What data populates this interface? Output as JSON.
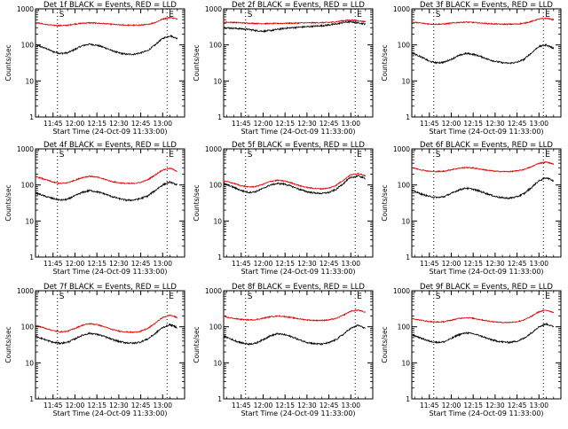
{
  "time_ticks": [
    "11:45",
    "12:00",
    "12:15",
    "12:30",
    "12:45",
    "13:00"
  ],
  "time_tick_minutes": [
    705,
    720,
    735,
    750,
    765,
    780
  ],
  "time_range": [
    693,
    795
  ],
  "event_markers": [
    {
      "time": 708,
      "label": "S"
    },
    {
      "time": 783,
      "label": "E"
    }
  ],
  "y_ticks": [
    "1",
    "10",
    "100",
    "1000"
  ],
  "y_tick_values": [
    1,
    10,
    100,
    1000
  ],
  "ylim": [
    1,
    1000
  ],
  "ylabel": "Counts/sec",
  "xlabel": "Start Time (24-Oct-09 11:33:00)",
  "series_colors": {
    "events": "#000000",
    "lld": "#dd0000"
  },
  "chart_data": [
    {
      "type": "line",
      "title": "Det 1f BLACK = Events, RED = LLD",
      "y_scale": "log",
      "grid": false,
      "series": [
        {
          "x": [
            693,
            700,
            705,
            710,
            715,
            720,
            725,
            730,
            735,
            740,
            745,
            750,
            755,
            760,
            765,
            770,
            775,
            780,
            785,
            790
          ],
          "values": [
            100,
            80,
            65,
            58,
            60,
            75,
            95,
            105,
            98,
            85,
            70,
            60,
            55,
            55,
            60,
            70,
            100,
            150,
            180,
            150
          ]
        },
        {
          "x": [
            693,
            700,
            705,
            710,
            715,
            720,
            725,
            730,
            735,
            740,
            745,
            750,
            755,
            760,
            765,
            770,
            775,
            780,
            785,
            790
          ],
          "values": [
            420,
            370,
            350,
            345,
            350,
            380,
            400,
            410,
            400,
            390,
            375,
            360,
            355,
            350,
            355,
            370,
            420,
            520,
            580,
            520
          ]
        }
      ]
    },
    {
      "type": "line",
      "title": "Det 2f BLACK = Events, RED = LLD",
      "y_scale": "log",
      "grid": false,
      "series": [
        {
          "x": [
            693,
            700,
            705,
            710,
            715,
            720,
            725,
            730,
            735,
            740,
            745,
            750,
            755,
            760,
            765,
            770,
            775,
            780,
            785,
            790
          ],
          "values": [
            300,
            290,
            280,
            270,
            250,
            240,
            250,
            270,
            290,
            300,
            310,
            320,
            330,
            340,
            360,
            380,
            420,
            440,
            410,
            380
          ]
        },
        {
          "x": [
            693,
            700,
            705,
            710,
            715,
            720,
            725,
            730,
            735,
            740,
            745,
            750,
            755,
            760,
            765,
            770,
            775,
            780,
            785,
            790
          ],
          "values": [
            430,
            420,
            410,
            400,
            395,
            390,
            390,
            395,
            400,
            400,
            405,
            410,
            410,
            415,
            420,
            440,
            470,
            490,
            470,
            440
          ]
        }
      ]
    },
    {
      "type": "line",
      "title": "Det 3f BLACK = Events, RED = LLD",
      "y_scale": "log",
      "grid": false,
      "series": [
        {
          "x": [
            693,
            700,
            705,
            710,
            715,
            720,
            725,
            730,
            735,
            740,
            745,
            750,
            755,
            760,
            765,
            770,
            775,
            780,
            785,
            790
          ],
          "values": [
            60,
            45,
            35,
            32,
            33,
            40,
            50,
            58,
            55,
            48,
            40,
            35,
            32,
            31,
            33,
            40,
            60,
            90,
            100,
            80
          ]
        },
        {
          "x": [
            693,
            700,
            705,
            710,
            715,
            720,
            725,
            730,
            735,
            740,
            745,
            750,
            755,
            760,
            765,
            770,
            775,
            780,
            785,
            790
          ],
          "values": [
            430,
            400,
            380,
            375,
            380,
            400,
            420,
            430,
            420,
            405,
            390,
            380,
            375,
            375,
            380,
            400,
            450,
            520,
            550,
            500
          ]
        }
      ]
    },
    {
      "type": "line",
      "title": "Det 4f BLACK = Events, RED = LLD",
      "y_scale": "log",
      "grid": false,
      "series": [
        {
          "x": [
            693,
            700,
            705,
            710,
            715,
            720,
            725,
            730,
            735,
            740,
            745,
            750,
            755,
            760,
            765,
            770,
            775,
            780,
            785,
            790
          ],
          "values": [
            60,
            48,
            42,
            38,
            40,
            50,
            62,
            70,
            65,
            57,
            48,
            42,
            38,
            38,
            42,
            50,
            70,
            100,
            120,
            100
          ]
        },
        {
          "x": [
            693,
            700,
            705,
            710,
            715,
            720,
            725,
            730,
            735,
            740,
            745,
            750,
            755,
            760,
            765,
            770,
            775,
            780,
            785,
            790
          ],
          "values": [
            170,
            140,
            120,
            110,
            115,
            135,
            160,
            175,
            165,
            145,
            125,
            115,
            110,
            110,
            118,
            140,
            190,
            260,
            290,
            240
          ]
        }
      ]
    },
    {
      "type": "line",
      "title": "Det 5f BLACK = Events, RED = LLD",
      "y_scale": "log",
      "grid": false,
      "series": [
        {
          "x": [
            693,
            700,
            705,
            710,
            715,
            720,
            725,
            730,
            735,
            740,
            745,
            750,
            755,
            760,
            765,
            770,
            775,
            780,
            785,
            790
          ],
          "values": [
            110,
            85,
            70,
            62,
            65,
            80,
            100,
            110,
            105,
            90,
            75,
            65,
            60,
            58,
            62,
            75,
            110,
            160,
            180,
            150
          ]
        },
        {
          "x": [
            693,
            700,
            705,
            710,
            715,
            720,
            725,
            730,
            735,
            740,
            745,
            750,
            755,
            760,
            765,
            770,
            775,
            780,
            785,
            790
          ],
          "values": [
            130,
            110,
            95,
            88,
            90,
            105,
            125,
            135,
            128,
            112,
            95,
            85,
            80,
            78,
            82,
            98,
            135,
            190,
            210,
            180
          ]
        }
      ]
    },
    {
      "type": "line",
      "title": "Det 6f BLACK = Events, RED = LLD",
      "y_scale": "log",
      "grid": false,
      "series": [
        {
          "x": [
            693,
            700,
            705,
            710,
            715,
            720,
            725,
            730,
            735,
            740,
            745,
            750,
            755,
            760,
            765,
            770,
            775,
            780,
            785,
            790
          ],
          "values": [
            70,
            55,
            48,
            45,
            47,
            58,
            72,
            82,
            76,
            66,
            56,
            48,
            44,
            43,
            47,
            58,
            85,
            130,
            160,
            130
          ]
        },
        {
          "x": [
            693,
            700,
            705,
            710,
            715,
            720,
            725,
            730,
            735,
            740,
            745,
            750,
            755,
            760,
            765,
            770,
            775,
            780,
            785,
            790
          ],
          "values": [
            300,
            260,
            240,
            235,
            240,
            265,
            290,
            305,
            295,
            275,
            255,
            240,
            235,
            235,
            245,
            270,
            320,
            400,
            430,
            380
          ]
        }
      ]
    },
    {
      "type": "line",
      "title": "Det 7f BLACK = Events, RED = LLD",
      "y_scale": "log",
      "grid": false,
      "series": [
        {
          "x": [
            693,
            700,
            705,
            710,
            715,
            720,
            725,
            730,
            735,
            740,
            745,
            750,
            755,
            760,
            765,
            770,
            775,
            780,
            785,
            790
          ],
          "values": [
            55,
            43,
            37,
            35,
            37,
            46,
            58,
            66,
            62,
            54,
            45,
            39,
            36,
            35,
            38,
            46,
            65,
            95,
            115,
            95
          ]
        },
        {
          "x": [
            693,
            700,
            705,
            710,
            715,
            720,
            725,
            730,
            735,
            740,
            745,
            750,
            755,
            760,
            765,
            770,
            775,
            780,
            785,
            790
          ],
          "values": [
            110,
            90,
            78,
            72,
            75,
            90,
            110,
            122,
            115,
            100,
            85,
            76,
            72,
            70,
            75,
            90,
            125,
            180,
            210,
            180
          ]
        }
      ]
    },
    {
      "type": "line",
      "title": "Det 8f BLACK = Events, RED = LLD",
      "y_scale": "log",
      "grid": false,
      "series": [
        {
          "x": [
            693,
            700,
            705,
            710,
            715,
            720,
            725,
            730,
            735,
            740,
            745,
            750,
            755,
            760,
            765,
            770,
            775,
            780,
            785,
            790
          ],
          "values": [
            55,
            42,
            36,
            33,
            35,
            44,
            56,
            64,
            60,
            52,
            43,
            37,
            34,
            33,
            36,
            44,
            62,
            90,
            110,
            90
          ]
        },
        {
          "x": [
            693,
            700,
            705,
            710,
            715,
            720,
            725,
            730,
            735,
            740,
            745,
            750,
            755,
            760,
            765,
            770,
            775,
            780,
            785,
            790
          ],
          "values": [
            190,
            170,
            160,
            155,
            158,
            172,
            190,
            200,
            192,
            178,
            165,
            155,
            150,
            150,
            155,
            170,
            210,
            270,
            290,
            250
          ]
        }
      ]
    },
    {
      "type": "line",
      "title": "Det 9f BLACK = Events, RED = LLD",
      "y_scale": "log",
      "grid": false,
      "series": [
        {
          "x": [
            693,
            700,
            705,
            710,
            715,
            720,
            725,
            730,
            735,
            740,
            745,
            750,
            755,
            760,
            765,
            770,
            775,
            780,
            785,
            790
          ],
          "values": [
            60,
            47,
            40,
            37,
            38,
            47,
            60,
            68,
            64,
            56,
            47,
            41,
            38,
            37,
            40,
            48,
            68,
            100,
            120,
            100
          ]
        },
        {
          "x": [
            693,
            700,
            705,
            710,
            715,
            720,
            725,
            730,
            735,
            740,
            745,
            750,
            755,
            760,
            765,
            770,
            775,
            780,
            785,
            790
          ],
          "values": [
            170,
            150,
            140,
            135,
            138,
            152,
            170,
            180,
            172,
            158,
            145,
            136,
            132,
            132,
            138,
            155,
            195,
            260,
            290,
            250
          ]
        }
      ]
    }
  ]
}
